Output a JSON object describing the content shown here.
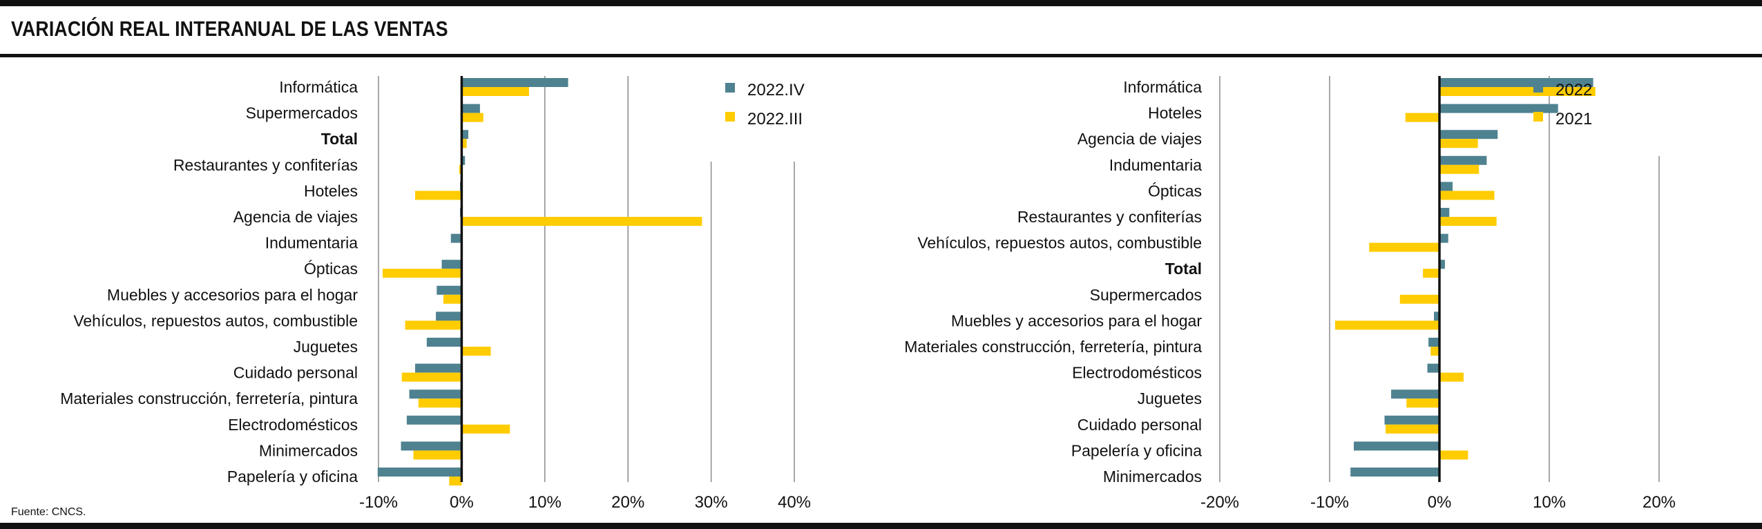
{
  "title": "VARIACIÓN REAL INTERANUAL DE LAS VENTAS",
  "source": "Fuente: CNCS.",
  "colors": {
    "series_a": "#4F8290",
    "series_b": "#FFCC00",
    "grid": "#8a8a8a",
    "axis": "#111111"
  },
  "chart_data": [
    {
      "type": "bar",
      "orientation": "horizontal",
      "categories": [
        "Informática",
        "Supermercados",
        "Total",
        "Restaurantes y confiterías",
        "Hoteles",
        "Agencia de viajes",
        "Indumentaria",
        "Ópticas",
        "Muebles y accesorios para el hogar",
        "Vehículos, repuestos autos, combustible",
        "Juguetes",
        "Cuidado personal",
        "Materiales construcción, ferretería, pintura",
        "Electrodomésticos",
        "Minimercados",
        "Papelería y oficina"
      ],
      "bold_categories": [
        "Total"
      ],
      "series": [
        {
          "name": "2022.IV",
          "values": [
            12.8,
            2.2,
            0.8,
            0.4,
            -0.2,
            -0.2,
            -1.3,
            -2.4,
            -3.0,
            -3.1,
            -4.2,
            -5.6,
            -6.3,
            -6.6,
            -7.3,
            -10.1
          ]
        },
        {
          "name": "2022.III",
          "values": [
            8.1,
            2.6,
            0.6,
            -0.3,
            -5.6,
            28.9,
            0.0,
            -9.5,
            -2.2,
            -6.8,
            3.5,
            -7.2,
            -5.2,
            5.8,
            -5.8,
            -1.5
          ]
        }
      ],
      "xlim": [
        -10,
        40
      ],
      "x_ticks": [
        -10,
        0,
        10,
        20,
        30,
        40
      ],
      "x_tick_labels": [
        "-10%",
        "0%",
        "10%",
        "20%",
        "30%",
        "40%"
      ],
      "legend": "top-right",
      "grid": "vertical"
    },
    {
      "type": "bar",
      "orientation": "horizontal",
      "categories": [
        "Informática",
        "Hoteles",
        "Agencia de viajes",
        "Indumentaria",
        "Ópticas",
        "Restaurantes y confiterías",
        "Vehículos, repuestos autos, combustible",
        "Total",
        "Supermercados",
        "Muebles y accesorios para el hogar",
        "Materiales construcción, ferretería, pintura",
        "Electrodomésticos",
        "Juguetes",
        "Cuidado personal",
        "Papelería y oficina",
        "Minimercados"
      ],
      "bold_categories": [
        "Total"
      ],
      "series": [
        {
          "name": "2022",
          "values": [
            14.0,
            10.8,
            5.3,
            4.3,
            1.2,
            0.9,
            0.8,
            0.5,
            -0.1,
            -0.5,
            -1.0,
            -1.1,
            -4.4,
            -5.0,
            -7.8,
            -8.1
          ]
        },
        {
          "name": "2021",
          "values": [
            14.2,
            -3.1,
            3.5,
            3.6,
            5.0,
            5.2,
            -6.4,
            -1.5,
            -3.6,
            -9.5,
            -0.8,
            2.2,
            -3.0,
            -4.9,
            2.6,
            0.0
          ]
        }
      ],
      "xlim": [
        -20,
        20
      ],
      "x_ticks": [
        -20,
        -10,
        0,
        10,
        20
      ],
      "x_tick_labels": [
        "-20%",
        "-10%",
        "0%",
        "10%",
        "20%"
      ],
      "legend": "top-right",
      "grid": "vertical"
    }
  ]
}
